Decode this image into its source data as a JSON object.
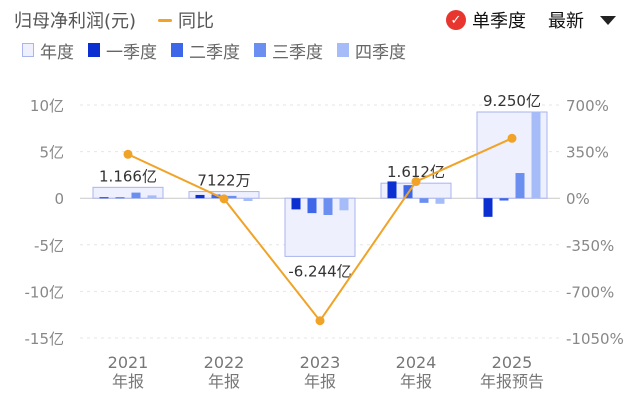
{
  "header": {
    "title": "归母净利润(元)",
    "yoy_label": "同比",
    "single_quarter_label": "单季度",
    "sort_label": "最新"
  },
  "legend": [
    {
      "key": "annual",
      "label": "年度",
      "color": "#eef0fd",
      "border": "#aab4ee"
    },
    {
      "key": "q1",
      "label": "一季度",
      "color": "#0b2fd0"
    },
    {
      "key": "q2",
      "label": "二季度",
      "color": "#3d67e8"
    },
    {
      "key": "q3",
      "label": "三季度",
      "color": "#6b8ff0"
    },
    {
      "key": "q4",
      "label": "四季度",
      "color": "#a6bcf8"
    }
  ],
  "colors": {
    "yoy": "#f0a327",
    "annual_fill": "#eef0fd",
    "annual_border": "#aab4ee"
  },
  "chart_data": {
    "type": "bar",
    "categories": [
      "2021",
      "2022",
      "2023",
      "2024",
      "2025"
    ],
    "category_sublabels": [
      "年报",
      "年报",
      "年报",
      "年报",
      "年报预告"
    ],
    "annual_values": [
      1.166,
      0.7122,
      -6.244,
      1.612,
      9.25
    ],
    "annual_labels": [
      "1.166亿",
      "7122万",
      "-6.244亿",
      "1.612亿",
      "9.250亿"
    ],
    "series": [
      {
        "name": "一季度",
        "values": [
          0.1,
          0.35,
          -1.2,
          1.8,
          -2.0
        ]
      },
      {
        "name": "二季度",
        "values": [
          0.1,
          0.4,
          -1.6,
          1.4,
          -0.25
        ]
      },
      {
        "name": "三季度",
        "values": [
          0.6,
          0.25,
          -1.8,
          -0.5,
          2.7
        ]
      },
      {
        "name": "四季度",
        "values": [
          0.3,
          -0.3,
          -1.3,
          -0.6,
          9.3
        ]
      }
    ],
    "yoy": [
      330,
      -5,
      -920,
      125,
      450
    ],
    "ylim_left": [
      -15,
      10
    ],
    "left_ticks": [
      10,
      5,
      0,
      -5,
      -10,
      -15
    ],
    "left_tick_labels": [
      "10亿",
      "5亿",
      "0",
      "-5亿",
      "-10亿",
      "-15亿"
    ],
    "ylim_right": [
      -1050,
      700
    ],
    "right_ticks": [
      700,
      350,
      0,
      -350,
      -700,
      -1050
    ],
    "right_tick_labels": [
      "700%",
      "350%",
      "0%",
      "-350%",
      "-700%",
      "-1050%"
    ]
  }
}
